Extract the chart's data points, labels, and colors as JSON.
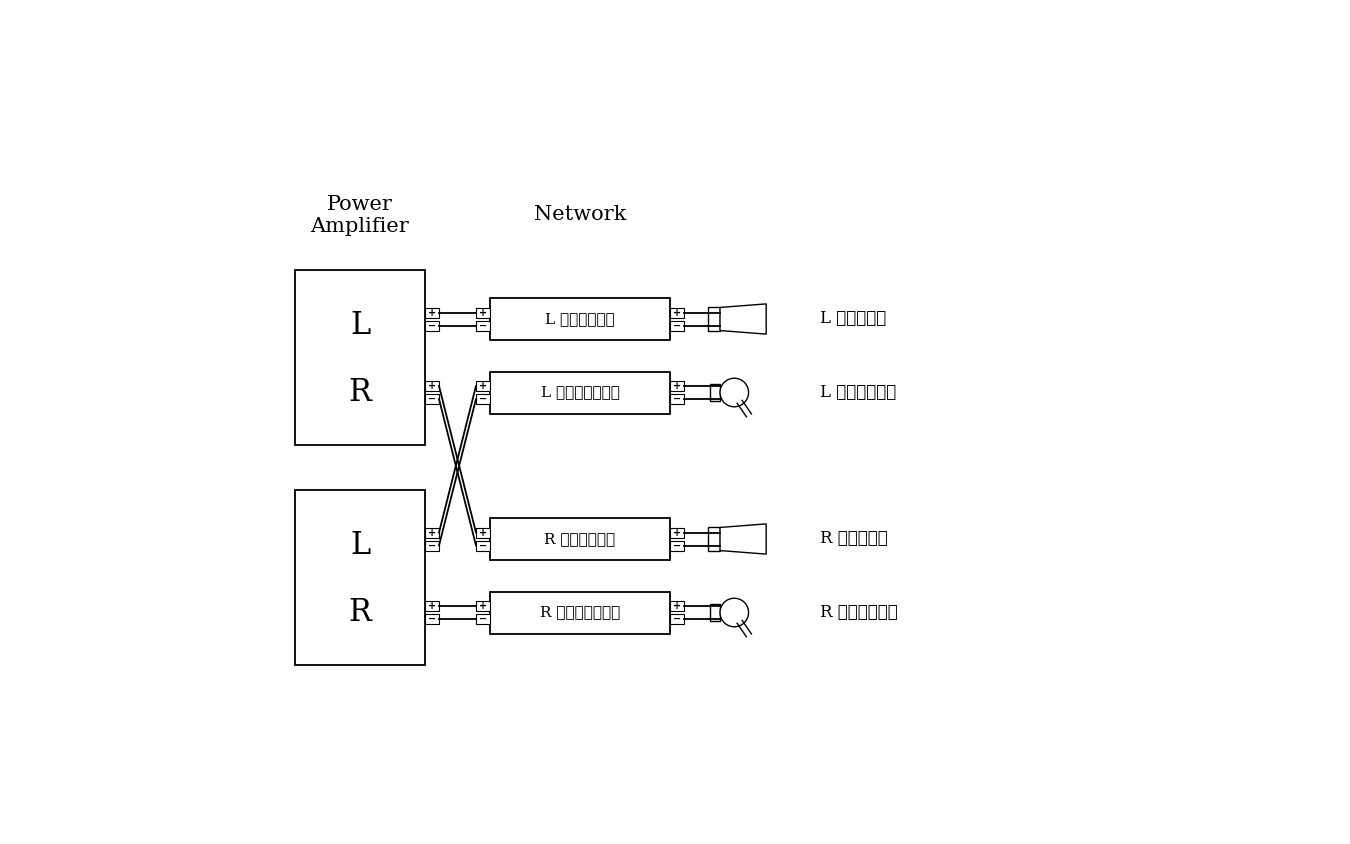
{
  "bg_color": "#ffffff",
  "line_color": "#000000",
  "title_power": "Power\nAmplifier",
  "title_network": "Network",
  "network_labels": [
    "L ウーファー用",
    "L トゥイーター用",
    "R ウーファー用",
    "R トゥイーター用"
  ],
  "speaker_labels": [
    "L ウーファー",
    "L トゥイーター",
    "R ウーファー",
    "R トゥイーター"
  ],
  "font_size_label": 22,
  "font_size_title": 15,
  "font_size_network": 11,
  "font_size_speaker": 12
}
